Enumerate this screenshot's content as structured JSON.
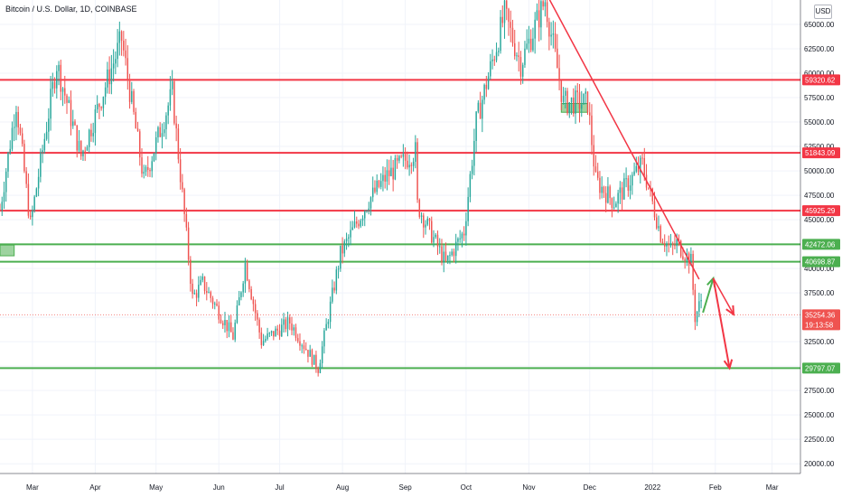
{
  "header": {
    "title": "Bitcoin / U.S. Dollar, 1D, COINBASE",
    "currency_badge": "USD"
  },
  "colors": {
    "up": "#26a69a",
    "down": "#ef5350",
    "resistance": "#f23645",
    "support": "#4caf50",
    "grid": "#f0f3fa"
  },
  "chart_data": {
    "type": "candlestick",
    "symbol": "Bitcoin / U.S. Dollar, 1D, COINBASE",
    "x_labels": [
      "Mar",
      "Apr",
      "May",
      "Jun",
      "Jul",
      "Aug",
      "Sep",
      "Oct",
      "Nov",
      "Dec",
      "2022",
      "Feb",
      "Mar"
    ],
    "y_ticks": [
      "65000.00",
      "62500.00",
      "60000.00",
      "57500.00",
      "55000.00",
      "52500.00",
      "50000.00",
      "47500.00",
      "45000.00",
      "42500.00",
      "40000.00",
      "37500.00",
      "35000.00",
      "32500.00",
      "30000.00",
      "27500.00",
      "25000.00",
      "22500.00",
      "20000.00"
    ],
    "ylim": [
      19000,
      67500
    ],
    "xlim": [
      "2021-02-13",
      "2022-03-15"
    ],
    "horizontal_levels": [
      {
        "value": 59320.62,
        "label": "59320.62",
        "role": "resistance"
      },
      {
        "value": 51843.09,
        "label": "51843.09",
        "role": "resistance"
      },
      {
        "value": 45925.29,
        "label": "45925.29",
        "role": "resistance"
      },
      {
        "value": 42472.06,
        "label": "42472.06",
        "role": "support"
      },
      {
        "value": 40698.87,
        "label": "40698.87",
        "role": "support"
      },
      {
        "value": 29797.07,
        "label": "29797.07",
        "role": "support"
      }
    ],
    "last_price": {
      "value": 35254.36,
      "label": "35254.36",
      "countdown": "19:13:58"
    },
    "trendline": {
      "from": {
        "date": "2021-11-10",
        "price": 68000
      },
      "to": {
        "date": "2022-01-24",
        "price": 38900
      }
    },
    "projection": [
      {
        "date": "2022-01-25",
        "price": 35200
      },
      {
        "date": "2022-01-31",
        "price": 39000
      },
      {
        "date": "2022-02-08",
        "price": 29800
      }
    ],
    "projection_alt": [
      {
        "date": "2022-01-31",
        "price": 39000
      },
      {
        "date": "2022-02-10",
        "price": 35300
      }
    ],
    "highlight_boxes": [
      {
        "date_from": "2021-02-13",
        "date_to": "2021-02-20",
        "price_low": 41300,
        "price_high": 42400
      },
      {
        "date_from": "2021-11-17",
        "date_to": "2021-11-30",
        "price_low": 56000,
        "price_high": 56900
      }
    ],
    "series": [
      {
        "name": "BTCUSD",
        "close": [
          {
            "date": "2021-02-13",
            "price": 46000
          },
          {
            "date": "2021-02-21",
            "price": 57000
          },
          {
            "date": "2021-02-28",
            "price": 44500
          },
          {
            "date": "2021-03-13",
            "price": 61000
          },
          {
            "date": "2021-03-25",
            "price": 51500
          },
          {
            "date": "2021-04-14",
            "price": 63500
          },
          {
            "date": "2021-04-25",
            "price": 49000
          },
          {
            "date": "2021-05-09",
            "price": 58000
          },
          {
            "date": "2021-05-19",
            "price": 37000
          },
          {
            "date": "2021-05-24",
            "price": 38500
          },
          {
            "date": "2021-06-08",
            "price": 33000
          },
          {
            "date": "2021-06-14",
            "price": 40500
          },
          {
            "date": "2021-06-22",
            "price": 32500
          },
          {
            "date": "2021-07-06",
            "price": 34500
          },
          {
            "date": "2021-07-20",
            "price": 29800
          },
          {
            "date": "2021-07-31",
            "price": 41500
          },
          {
            "date": "2021-08-14",
            "price": 47000
          },
          {
            "date": "2021-08-23",
            "price": 49500
          },
          {
            "date": "2021-09-06",
            "price": 52000
          },
          {
            "date": "2021-09-07",
            "price": 46500
          },
          {
            "date": "2021-09-21",
            "price": 40500
          },
          {
            "date": "2021-09-30",
            "price": 43800
          },
          {
            "date": "2021-10-06",
            "price": 55000
          },
          {
            "date": "2021-10-20",
            "price": 66000
          },
          {
            "date": "2021-10-28",
            "price": 61000
          },
          {
            "date": "2021-11-09",
            "price": 67500
          },
          {
            "date": "2021-11-18",
            "price": 57000
          },
          {
            "date": "2021-11-30",
            "price": 57000
          },
          {
            "date": "2021-12-04",
            "price": 49000
          },
          {
            "date": "2021-12-13",
            "price": 46800
          },
          {
            "date": "2021-12-27",
            "price": 50700
          },
          {
            "date": "2022-01-05",
            "price": 43500
          },
          {
            "date": "2022-01-10",
            "price": 41900
          },
          {
            "date": "2022-01-13",
            "price": 42600
          },
          {
            "date": "2022-01-20",
            "price": 40700
          },
          {
            "date": "2022-01-22",
            "price": 35000
          },
          {
            "date": "2022-01-25",
            "price": 36800
          }
        ]
      }
    ]
  }
}
